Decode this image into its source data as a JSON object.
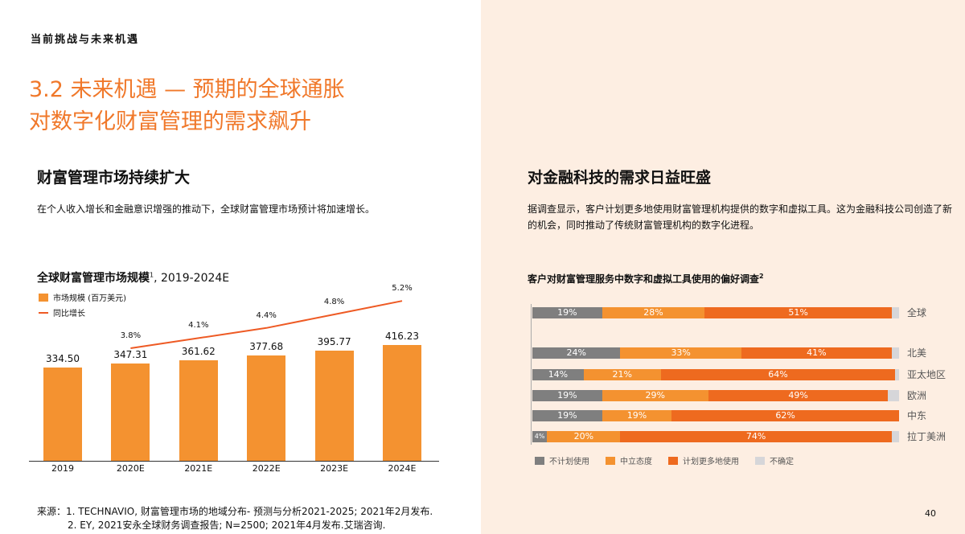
{
  "section": "当前挑战与未来机遇",
  "title_line1": "3.2 未来机遇 — 预期的全球通胀",
  "title_line2": "对数字化财富管理的需求飙升",
  "left": {
    "heading": "财富管理市场持续扩大",
    "text": "在个人收入增长和金融意识增强的推动下，全球财富管理市场预计将加速增长。"
  },
  "right": {
    "heading": "对金融科技的需求日益旺盛",
    "text": "据调查显示，客户计划更多地使用财富管理机构提供的数字和虚拟工具。这为金融科技公司创造了新的机会，同时推动了传统财富管理机构的数字化进程。"
  },
  "chart_data": [
    {
      "type": "bar",
      "title": "全球财富管理市场规模",
      "title_sup": "1",
      "title_suffix": ", 2019-2024E",
      "categories": [
        "2019",
        "2020E",
        "2021E",
        "2022E",
        "2023E",
        "2024E"
      ],
      "series": [
        {
          "name": "市场规模 (百万美元)",
          "type": "bar",
          "values": [
            334.5,
            347.31,
            361.62,
            377.68,
            395.77,
            416.23
          ],
          "labels": [
            "334.50",
            "347.31",
            "361.62",
            "377.68",
            "395.77",
            "416.23"
          ],
          "color": "#f49230"
        },
        {
          "name": "同比增长",
          "type": "line",
          "values": [
            null,
            3.8,
            4.1,
            4.4,
            4.8,
            5.2
          ],
          "labels": [
            "",
            "3.8%",
            "4.1%",
            "4.4%",
            "4.8%",
            "5.2%"
          ],
          "color": "#ee5a24"
        }
      ]
    },
    {
      "type": "bar",
      "stacked": true,
      "orientation": "horizontal",
      "title": "客户对财富管理服务中数字和虚拟工具使用的偏好调查",
      "title_sup": "2",
      "categories": [
        "全球",
        "北美",
        "亚太地区",
        "欧洲",
        "中东",
        "拉丁美洲"
      ],
      "series": [
        {
          "name": "不计划使用",
          "values": [
            19,
            24,
            14,
            19,
            19,
            4
          ],
          "color": "#7f7f7f"
        },
        {
          "name": "中立态度",
          "values": [
            28,
            33,
            21,
            29,
            19,
            20
          ],
          "color": "#f49230"
        },
        {
          "name": "计划更多地使用",
          "values": [
            51,
            41,
            64,
            49,
            62,
            74
          ],
          "color": "#ee6a1f"
        },
        {
          "name": "不确定",
          "values": [
            2,
            2,
            1,
            3,
            0,
            2
          ],
          "color": "#d6d6d9"
        }
      ]
    }
  ],
  "sources": [
    "来源：1. TECHNAVIO, 财富管理市场的地域分布- 预测与分析2021-2025; 2021年2月发布.",
    "2. EY, 2021安永全球财务调查报告; N=2500; 2021年4月发布.艾瑞咨询."
  ],
  "page_number": "40"
}
